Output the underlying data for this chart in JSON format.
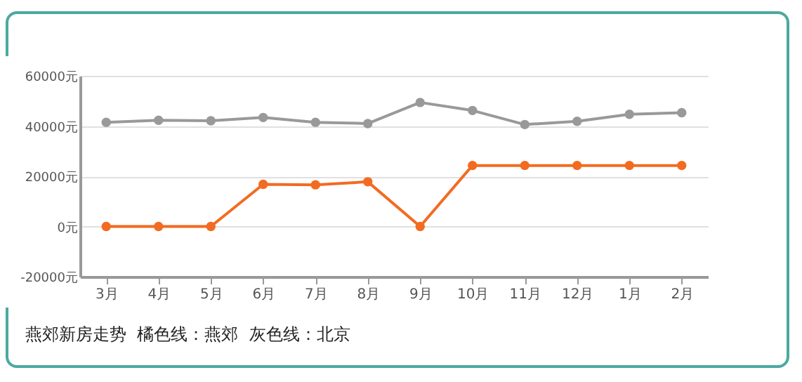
{
  "chart_data": {
    "type": "line",
    "categories": [
      "3月",
      "4月",
      "5月",
      "6月",
      "7月",
      "8月",
      "9月",
      "10月",
      "11月",
      "12月",
      "1月",
      "2月"
    ],
    "series": [
      {
        "color": "#999999",
        "values": [
          41500,
          42300,
          42100,
          43400,
          41500,
          41000,
          49400,
          46200,
          40600,
          41900,
          44700,
          45300
        ]
      },
      {
        "color": "#f26b21",
        "values": [
          0,
          0,
          0,
          16800,
          16600,
          17800,
          0,
          24300,
          24300,
          24300,
          24300,
          24300
        ]
      }
    ],
    "ylim": [
      -20000,
      60000
    ],
    "yticks": [
      {
        "value": -20000,
        "label": "-20000元"
      },
      {
        "value": 0,
        "label": "0元"
      },
      {
        "value": 20000,
        "label": "20000元"
      },
      {
        "value": 40000,
        "label": "40000元"
      },
      {
        "value": 60000,
        "label": "60000元"
      }
    ],
    "grid": "y",
    "marker": "circle",
    "line_style": "solid",
    "legend": false,
    "annotations": [
      "燕郊新房走势  橘色线：燕郊  灰色线：北京"
    ]
  }
}
